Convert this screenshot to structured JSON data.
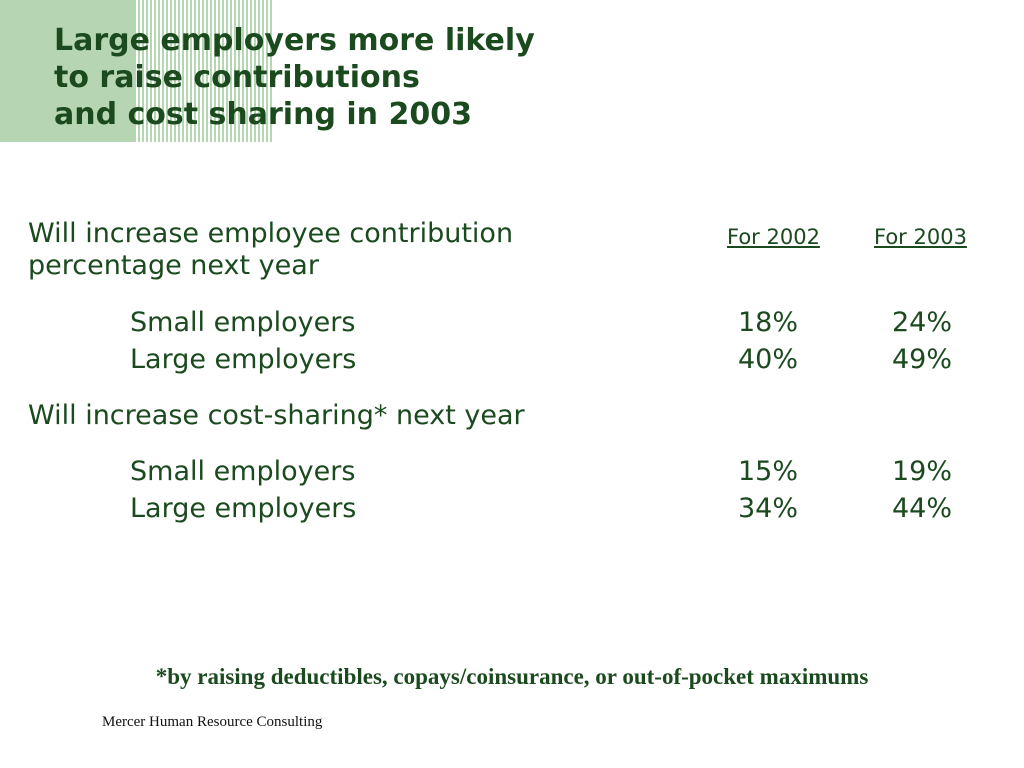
{
  "title": {
    "line1": "Large employers more likely",
    "line2": "to raise contributions",
    "line3": "and cost sharing in 2003"
  },
  "columns": {
    "col1": "For 2002",
    "col2": "For 2003"
  },
  "sections": [
    {
      "heading_line1": "Will increase employee contribution",
      "heading_line2": "percentage next year",
      "rows": [
        {
          "label": "Small employers",
          "v2002": "18%",
          "v2003": "24%"
        },
        {
          "label": "Large employers",
          "v2002": "40%",
          "v2003": "49%"
        }
      ]
    },
    {
      "heading_line1": "Will increase cost-sharing* next year",
      "rows": [
        {
          "label": "Small employers",
          "v2002": "15%",
          "v2003": "19%"
        },
        {
          "label": "Large employers",
          "v2002": "34%",
          "v2003": "44%"
        }
      ]
    }
  ],
  "footnote": "*by raising deductibles, copays/coinsurance, or out-of-pocket maximums",
  "source": "Mercer Human Resource Consulting",
  "colors": {
    "text": "#1a4a1e",
    "accent_green": "#b6d5b3"
  }
}
